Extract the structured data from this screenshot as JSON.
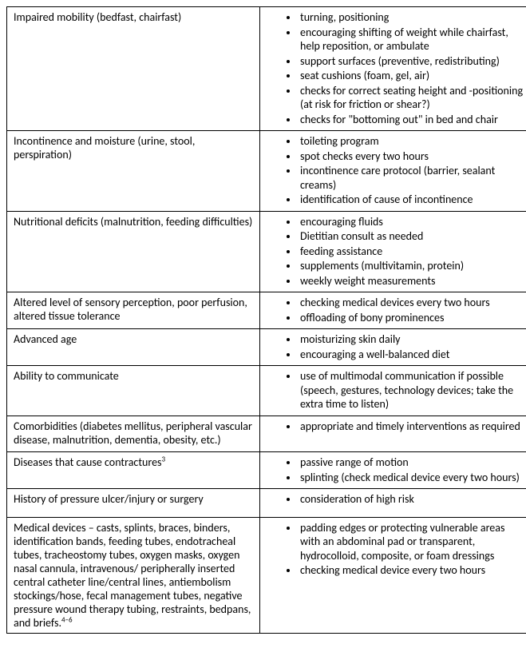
{
  "rows": [
    {
      "key": "r0",
      "left": "Impaired mobility (bedfast, chairfast)",
      "bullets": [
        "turning, positioning",
        "encouraging shifting of weight while chairfast, help reposition, or ambulate",
        "support surfaces (preventive, redistributing)",
        "seat cushions (foam, gel, air)",
        "checks for correct seating height and -positioning (at risk for friction or shear?)",
        "checks for \"bottoming out\" in bed and chair"
      ]
    },
    {
      "key": "r1",
      "left": "Incontinence and moisture (urine, stool, perspiration)",
      "bullets": [
        "toileting program",
        "spot checks every two hours",
        "incontinence care protocol (barrier, sealant creams)",
        "identification of cause of incontinence"
      ]
    },
    {
      "key": "r2",
      "left": "Nutritional deficits (malnutrition, feeding difficulties)",
      "bullets": [
        "encouraging fluids",
        "Dietitian consult as needed",
        "feeding assistance",
        "supplements (multivitamin, protein)",
        "weekly weight measurements"
      ]
    },
    {
      "key": "r3",
      "left": "Altered level of sensory perception, poor perfusion, altered tissue tolerance",
      "bullets": [
        "checking medical devices every two hours",
        "offloading of bony prominences"
      ]
    },
    {
      "key": "r4",
      "left": "Advanced age",
      "bullets": [
        "moisturizing skin daily",
        "encouraging a well-balanced diet"
      ]
    },
    {
      "key": "r5",
      "left": "Ability to communicate",
      "bullets": [
        "use of multimodal communication if possible (speech, gestures, technology devices; take the extra time to listen)"
      ]
    },
    {
      "key": "r6",
      "left": "Comorbidities (diabetes mellitus, peripheral vascular disease, malnutrition, dementia, obesity, etc.)",
      "bullets": [
        "appropriate and timely interventions as required"
      ],
      "extra_bottom": true
    },
    {
      "key": "r7",
      "left_html": "Diseases that cause contractures<sup>3</sup>",
      "bullets": [
        "passive range of motion",
        "splinting (check medical device every two hours)"
      ]
    },
    {
      "key": "r8",
      "left": "History of pressure ulcer/injury or surgery",
      "bullets": [
        "consideration of high risk"
      ],
      "extra_bottom_small": true
    },
    {
      "key": "r9",
      "left_html": "Medical devices – casts, splints, braces, binders, identification bands, feeding tubes, endotracheal tubes, tracheostomy tubes, oxygen masks, oxygen nasal cannula, intravenous/ peripherally inserted central catheter line/central lines, antiembolism stockings/hose, fecal management tubes, negative pressure wound therapy tubing, restraints, bedpans, and briefs.<sup>4–6</sup>",
      "bullets": [
        "padding edges or protecting vulnerable areas with an abdominal pad or transparent, hydrocolloid, composite, or foam dressings",
        "checking medical device every two hours"
      ]
    }
  ]
}
